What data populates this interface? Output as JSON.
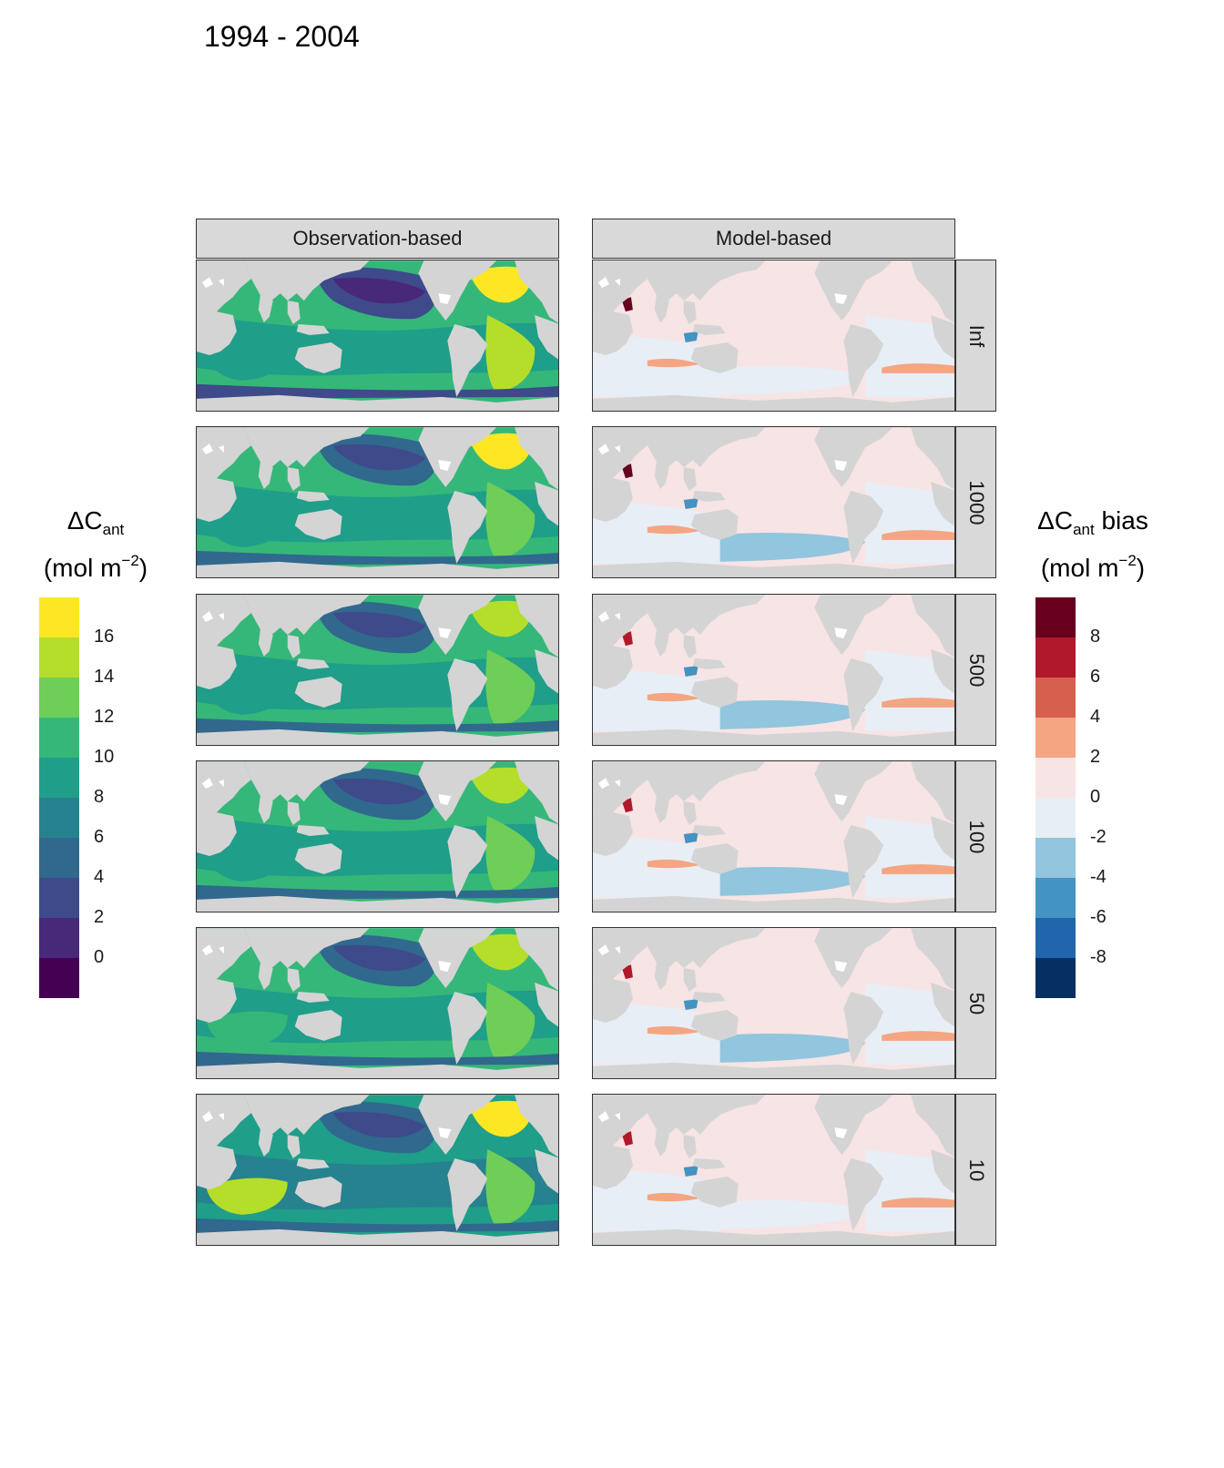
{
  "title": "1994 - 2004",
  "columns": [
    "Observation-based",
    "Model-based"
  ],
  "rows": [
    "Inf",
    "1000",
    "500",
    "100",
    "50",
    "10"
  ],
  "colors": {
    "land": "#d4d4d4",
    "strip_background": "#d9d9d9",
    "viridis_bins": [
      "#440154",
      "#482878",
      "#3e4a89",
      "#31688e",
      "#26828e",
      "#1f9e89",
      "#35b779",
      "#6ece58",
      "#b5de2b",
      "#fde725"
    ],
    "rdbu_bins": [
      "#053061",
      "#2166ac",
      "#4393c3",
      "#92c5de",
      "#e8eef5",
      "#f7e4e4",
      "#f4a582",
      "#d6604d",
      "#b2182b",
      "#67001f"
    ]
  },
  "legend_left": {
    "title_line1": "ΔC",
    "title_sub": "ant",
    "title_unit_pre": "(mol m",
    "title_unit_sup": "−2",
    "title_unit_post": ")",
    "ticks": [
      "16",
      "14",
      "12",
      "10",
      "8",
      "6",
      "4",
      "2",
      "0"
    ]
  },
  "legend_right": {
    "title_line1": "ΔC",
    "title_sub": "ant",
    "title_suffix": " bias",
    "title_unit_pre": "(mol m",
    "title_unit_sup": "−2",
    "title_unit_post": ")",
    "ticks": [
      "8",
      "6",
      "4",
      "2",
      "0",
      "-2",
      "-4",
      "-6",
      "-8"
    ]
  },
  "panels": {
    "observation": {
      "Inf": {
        "pacific_level": 2,
        "tropic_level": 5,
        "south_level": 6,
        "atlantic_level": 8,
        "north_atlantic_level": 9,
        "indian_level": 5
      },
      "1000": {
        "pacific_level": 3,
        "tropic_level": 5,
        "south_level": 6,
        "atlantic_level": 7,
        "north_atlantic_level": 9,
        "indian_level": 5
      },
      "500": {
        "pacific_level": 3,
        "tropic_level": 5,
        "south_level": 6,
        "atlantic_level": 7,
        "north_atlantic_level": 8,
        "indian_level": 5
      },
      "100": {
        "pacific_level": 3,
        "tropic_level": 5,
        "south_level": 6,
        "atlantic_level": 7,
        "north_atlantic_level": 8,
        "indian_level": 5
      },
      "50": {
        "pacific_level": 3,
        "tropic_level": 5,
        "south_level": 6,
        "atlantic_level": 7,
        "north_atlantic_level": 8,
        "indian_level": 6
      },
      "10": {
        "pacific_level": 3,
        "tropic_level": 4,
        "south_level": 5,
        "atlantic_level": 7,
        "north_atlantic_level": 9,
        "indian_level": 8
      }
    },
    "model": {
      "Inf": {
        "base_level": 5,
        "south_pacific_level": 4,
        "band_level": 6,
        "hotspot_level": 9
      },
      "1000": {
        "base_level": 5,
        "south_pacific_level": 3,
        "band_level": 6,
        "hotspot_level": 9
      },
      "500": {
        "base_level": 5,
        "south_pacific_level": 3,
        "band_level": 6,
        "hotspot_level": 8
      },
      "100": {
        "base_level": 5,
        "south_pacific_level": 3,
        "band_level": 6,
        "hotspot_level": 8
      },
      "50": {
        "base_level": 5,
        "south_pacific_level": 3,
        "band_level": 6,
        "hotspot_level": 8
      },
      "10": {
        "base_level": 5,
        "south_pacific_level": 4,
        "band_level": 6,
        "hotspot_level": 8
      }
    }
  }
}
